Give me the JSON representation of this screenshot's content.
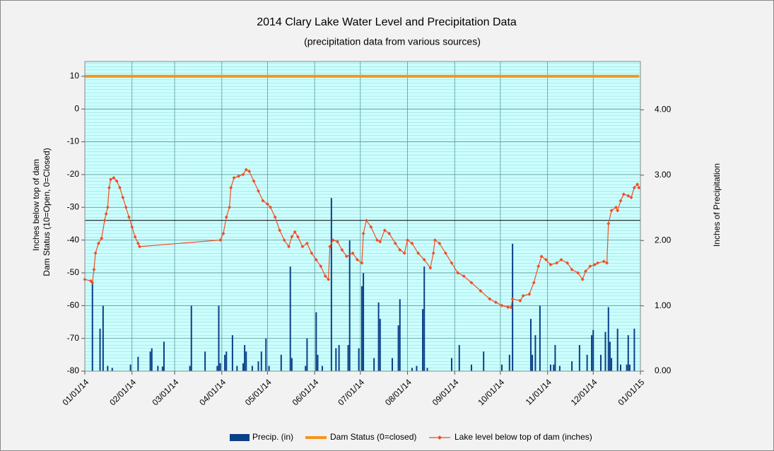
{
  "chart_data": {
    "type": "combo",
    "title": "2014 Clary Lake Water Level and Precipitation Data",
    "subtitle": "(precipitation data from various sources)",
    "y_label": "Inches below top of dam",
    "y_label_2": "Dam Status (10=Open, 0=Closed)",
    "y2_label": "Inches of Precipitation",
    "xlim": [
      "01/01/14",
      "01/01/15"
    ],
    "xticks": [
      "01/01/14",
      "02/01/14",
      "03/01/14",
      "04/01/14",
      "05/01/14",
      "06/01/14",
      "07/01/14",
      "08/01/14",
      "09/01/14",
      "10/01/14",
      "11/01/14",
      "12/01/14",
      "01/01/15"
    ],
    "ylim": [
      -80,
      14.5
    ],
    "yticks": [
      10,
      0,
      -10,
      -20,
      -30,
      -40,
      -50,
      -60,
      -70,
      -80
    ],
    "y2lim": [
      0,
      4.74
    ],
    "y2ticks": [
      {
        "value": 0,
        "label": "0.00"
      },
      {
        "value": 1,
        "label": "1.00"
      },
      {
        "value": 2,
        "label": "2.00"
      },
      {
        "value": 3,
        "label": "3.00"
      },
      {
        "value": 4,
        "label": "4.00"
      }
    ],
    "reference_line": -34,
    "grid": true,
    "legend": "bottom",
    "series": [
      {
        "name": "Precip. (in)",
        "type": "bar",
        "axis": "y2",
        "color": "#0a3f8a",
        "x": [
          "01/06/14",
          "01/11/14",
          "01/13/14",
          "01/16/14",
          "01/19/14",
          "01/31/14",
          "02/05/14",
          "02/13/14",
          "02/14/14",
          "02/18/14",
          "02/21/14",
          "02/22/14",
          "03/11/14",
          "03/12/14",
          "03/21/14",
          "03/29/14",
          "03/30/14",
          "03/31/14",
          "04/03/14",
          "04/04/14",
          "04/08/14",
          "04/11/14",
          "04/15/14",
          "04/16/14",
          "04/17/14",
          "04/21/14",
          "04/25/14",
          "04/27/14",
          "04/30/14",
          "05/02/14",
          "05/10/14",
          "05/16/14",
          "05/17/14",
          "05/26/14",
          "05/27/14",
          "06/02/14",
          "06/03/14",
          "06/06/14",
          "06/12/14",
          "06/15/14",
          "06/17/14",
          "06/23/14",
          "06/24/14",
          "06/30/14",
          "07/02/14",
          "07/03/14",
          "07/10/14",
          "07/13/14",
          "07/14/14",
          "07/22/14",
          "07/26/14",
          "07/27/14",
          "08/04/14",
          "08/07/14",
          "08/11/14",
          "08/12/14",
          "08/14/14",
          "08/30/14",
          "09/04/14",
          "09/12/14",
          "09/20/14",
          "10/02/14",
          "10/07/14",
          "10/09/14",
          "10/21/14",
          "10/22/14",
          "10/24/14",
          "10/27/14",
          "11/03/14",
          "11/05/14",
          "11/06/14",
          "11/09/14",
          "11/17/14",
          "11/22/14",
          "11/27/14",
          "11/30/14",
          "12/01/14",
          "12/06/14",
          "12/09/14",
          "12/11/14",
          "12/12/14",
          "12/13/14",
          "12/17/14",
          "12/19/14",
          "12/23/14",
          "12/24/14",
          "12/25/14",
          "12/28/14"
        ],
        "values": [
          1.35,
          0.65,
          1.0,
          0.08,
          0.05,
          0.1,
          0.22,
          0.3,
          0.35,
          0.08,
          0.07,
          0.45,
          0.08,
          1.0,
          0.3,
          0.08,
          1.0,
          0.12,
          0.25,
          0.3,
          0.55,
          0.08,
          0.12,
          0.4,
          0.3,
          0.08,
          0.15,
          0.3,
          0.5,
          0.08,
          0.25,
          1.6,
          0.2,
          0.08,
          0.5,
          0.9,
          0.25,
          0.08,
          2.65,
          0.35,
          0.4,
          0.4,
          2.0,
          0.35,
          1.3,
          1.5,
          0.2,
          1.05,
          0.8,
          0.2,
          0.7,
          1.1,
          0.05,
          0.08,
          0.95,
          1.6,
          0.05,
          0.2,
          0.4,
          0.1,
          0.3,
          0.1,
          0.25,
          1.95,
          0.8,
          0.25,
          0.55,
          1.0,
          0.1,
          0.1,
          0.4,
          0.08,
          0.15,
          0.4,
          0.25,
          0.55,
          0.63,
          0.25,
          0.6,
          0.98,
          0.45,
          0.2,
          0.65,
          0.1,
          0.1,
          0.55,
          0.1,
          0.65
        ]
      },
      {
        "name": "Dam Status (0=closed)",
        "type": "line",
        "color": "#f7941d",
        "x": [
          "01/01/14",
          "12/31/14"
        ],
        "values": [
          10,
          10
        ]
      },
      {
        "name": "Lake level below top of dam (inches)",
        "type": "line",
        "markers": true,
        "color": "#f04e23",
        "x": [
          "01/01/14",
          "01/05/14",
          "01/06/14",
          "01/07/14",
          "01/08/14",
          "01/10/14",
          "01/12/14",
          "01/14/14",
          "01/15/14",
          "01/16/14",
          "01/17/14",
          "01/18/14",
          "01/20/14",
          "01/22/14",
          "01/24/14",
          "01/26/14",
          "01/28/14",
          "01/30/14",
          "02/01/14",
          "02/03/14",
          "02/05/14",
          "02/06/14",
          "03/31/14",
          "04/02/14",
          "04/04/14",
          "04/06/14",
          "04/07/14",
          "04/09/14",
          "04/12/14",
          "04/15/14",
          "04/17/14",
          "04/19/14",
          "04/22/14",
          "04/25/14",
          "04/28/14",
          "05/01/14",
          "05/03/14",
          "05/06/14",
          "05/09/14",
          "05/12/14",
          "05/15/14",
          "05/17/14",
          "05/19/14",
          "05/21/14",
          "05/24/14",
          "05/27/14",
          "05/30/14",
          "06/02/14",
          "06/05/14",
          "06/08/14",
          "06/10/14",
          "06/11/14",
          "06/13/14",
          "06/16/14",
          "06/19/14",
          "06/22/14",
          "06/26/14",
          "06/29/14",
          "07/02/14",
          "07/03/14",
          "07/05/14",
          "07/08/14",
          "07/12/14",
          "07/14/14",
          "07/17/14",
          "07/20/14",
          "07/24/14",
          "07/27/14",
          "07/30/14",
          "08/01/14",
          "08/04/14",
          "08/08/14",
          "08/12/14",
          "08/16/14",
          "08/18/14",
          "08/19/14",
          "08/22/14",
          "08/26/14",
          "08/30/14",
          "09/03/14",
          "09/07/14",
          "09/12/14",
          "09/18/14",
          "09/24/14",
          "09/28/14",
          "10/02/14",
          "10/06/14",
          "10/08/14",
          "10/09/14",
          "10/14/14",
          "10/16/14",
          "10/20/14",
          "10/23/14",
          "10/26/14",
          "10/28/14",
          "10/31/14",
          "11/03/14",
          "11/07/14",
          "11/10/14",
          "11/14/14",
          "11/17/14",
          "11/21/14",
          "11/24/14",
          "11/26/14",
          "11/29/14",
          "12/02/14",
          "12/04/14",
          "12/08/14",
          "12/10/14",
          "12/11/14",
          "12/13/14",
          "12/16/14",
          "12/17/14",
          "12/19/14",
          "12/21/14",
          "12/24/14",
          "12/26/14",
          "12/28/14",
          "12/30/14",
          "12/31/14"
        ],
        "values": [
          -52,
          -52.5,
          -53,
          -49,
          -44,
          -41,
          -39.5,
          -34,
          -32,
          -30,
          -24,
          -21.5,
          -21,
          -22,
          -24,
          -27,
          -30,
          -33,
          -36,
          -39,
          -41,
          -42,
          -40,
          -38,
          -33,
          -30,
          -24,
          -21,
          -20.5,
          -20,
          -18.5,
          -19,
          -22,
          -25,
          -28,
          -29,
          -30,
          -33,
          -37,
          -40,
          -42,
          -39,
          -37.5,
          -39,
          -42,
          -41,
          -44,
          -46,
          -48,
          -51,
          -52,
          -42,
          -40,
          -40.5,
          -43,
          -45,
          -44,
          -46,
          -47,
          -38,
          -34,
          -36,
          -40,
          -40.5,
          -37,
          -38,
          -41,
          -43,
          -44,
          -40,
          -41,
          -44,
          -46,
          -48.5,
          -44,
          -40,
          -41,
          -44,
          -47,
          -50,
          -51,
          -53,
          -55.5,
          -58,
          -59,
          -60,
          -60.5,
          -60.5,
          -58,
          -58.5,
          -57,
          -56.5,
          -53,
          -48,
          -45,
          -46,
          -47.5,
          -47,
          -46,
          -47,
          -49,
          -50,
          -52,
          -49.5,
          -48,
          -47.5,
          -47,
          -46.5,
          -47,
          -35,
          -31,
          -30,
          -31,
          -28,
          -26,
          -26.5,
          -27,
          -24,
          -23,
          -24
        ]
      }
    ]
  }
}
